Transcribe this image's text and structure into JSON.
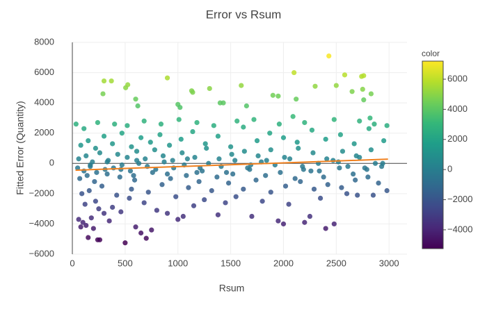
{
  "chart_data": {
    "type": "scatter",
    "title": "Error vs Rsum",
    "x_label": "Rsum",
    "y_label": "Fitted Error (Quantity)",
    "xlim": [
      0,
      3170
    ],
    "ylim": [
      -6000,
      8000
    ],
    "xticks": [
      0,
      500,
      1000,
      1500,
      2000,
      2500,
      3000
    ],
    "yticks": [
      {
        "value": -6000,
        "label": "−6000"
      },
      {
        "value": -4000,
        "label": "−4000"
      },
      {
        "value": -2000,
        "label": "−2000"
      },
      0,
      2000,
      4000,
      6000,
      8000
    ],
    "grid": true,
    "colorscale": "Viridis",
    "colorbar": {
      "title": "color",
      "lim": [
        -5250,
        7200
      ],
      "ticks": [
        {
          "value": -4000,
          "label": "−4000"
        },
        {
          "value": -2000,
          "label": "−2000"
        },
        0,
        2000,
        4000,
        6000
      ]
    },
    "series": [
      {
        "x": [
          35,
          290,
          300,
          370,
          505,
          525,
          600,
          620,
          900,
          1000,
          1020,
          1130,
          1140,
          1300,
          1400,
          1430,
          1600,
          1650,
          1900,
          1950,
          2100,
          2120,
          2300,
          2430,
          2500,
          2580,
          2650,
          2740,
          2760,
          2750,
          2760,
          2830,
          2820,
          2980,
          240,
          260,
          500,
          650,
          700,
          750,
          150,
          80,
          100,
          60,
          180,
          130,
          200,
          350,
          600,
          1000,
          1050,
          1380,
          1700,
          1950,
          2000,
          2200,
          2400,
          2480,
          2250,
          900,
          800,
          460,
          300,
          250,
          120,
          220,
          380,
          540,
          680,
          1150,
          1250,
          1450,
          1550,
          1800,
          2050,
          2350,
          2600,
          2700,
          2850,
          2980,
          90,
          160,
          280,
          420,
          560,
          720,
          850,
          980,
          1100,
          1200,
          1320,
          1480,
          1620,
          1740,
          1880,
          2020,
          2160,
          2290,
          2420,
          2550,
          2680,
          2800,
          2900,
          70,
          140,
          210,
          330,
          450,
          590,
          760,
          930,
          1080,
          1230,
          1370,
          1520,
          1680,
          1830,
          1970,
          2110,
          2260,
          2380,
          2530,
          2660,
          2790,
          2930,
          50,
          110,
          170,
          230,
          310,
          390,
          470,
          550,
          630,
          710,
          790,
          870,
          960,
          1060,
          1180,
          1290,
          1410,
          1540,
          1660,
          1790,
          1920,
          2060,
          2190,
          2330,
          2470,
          2610,
          2720,
          2870,
          60,
          130,
          190,
          260,
          340,
          430,
          520,
          610,
          690,
          780,
          860,
          950,
          1040,
          1160,
          1270,
          1390,
          1510,
          1630,
          1760,
          1880,
          2010,
          2140,
          2280,
          2410,
          2560,
          2690,
          2830,
          80,
          150,
          220,
          300,
          380,
          470,
          560,
          650,
          740,
          830,
          920,
          1030,
          1140,
          1260,
          1380,
          1500,
          1620,
          1750,
          1870,
          2000,
          2130,
          2270,
          2400,
          2540,
          2670,
          2810,
          2950,
          110,
          240,
          400,
          520,
          680,
          840,
          1010,
          1180,
          1340,
          1560,
          1720,
          1960,
          2090,
          2200,
          2480,
          2720,
          2860,
          170,
          330,
          460,
          610,
          900,
          1090,
          1210,
          1460,
          1690,
          1840,
          2180,
          2340,
          2520,
          2770,
          2940,
          580
        ],
        "values": [
          2600,
          4600,
          5450,
          5450,
          5000,
          5200,
          4250,
          3800,
          5650,
          3900,
          3700,
          4800,
          4700,
          4950,
          4000,
          4000,
          5150,
          3800,
          4500,
          4450,
          6000,
          4250,
          5100,
          7100,
          5150,
          5850,
          4750,
          5750,
          5800,
          4900,
          4200,
          4600,
          3000,
          2500,
          -5050,
          -5050,
          -5250,
          -4600,
          -4950,
          -4400,
          -4900,
          -4200,
          -3900,
          -3700,
          -3600,
          -4100,
          -4300,
          -3800,
          -4200,
          -3700,
          -3500,
          -3400,
          -3500,
          -3800,
          -4000,
          -3900,
          -4300,
          -4000,
          -3500,
          -3300,
          -3100,
          -3200,
          -3300,
          -3000,
          -2700,
          -2500,
          -2900,
          -2300,
          -2600,
          -2800,
          -2400,
          -2600,
          -2200,
          -2500,
          -2700,
          -2300,
          -2000,
          -2100,
          -2100,
          -1800,
          -2000,
          -1800,
          -1500,
          -2100,
          -1700,
          -1900,
          -1400,
          -2200,
          -1600,
          -1200,
          -1800,
          -1300,
          -1700,
          -1100,
          -1900,
          -1500,
          -1200,
          -1700,
          -1400,
          -1600,
          -1100,
          -900,
          -1300,
          -1000,
          -800,
          -1200,
          -700,
          -900,
          -1100,
          -600,
          -1000,
          -800,
          -500,
          -900,
          -700,
          -400,
          -800,
          -600,
          -1000,
          -500,
          -900,
          -300,
          -700,
          -400,
          -200,
          -300,
          -500,
          -200,
          -600,
          -400,
          -300,
          -100,
          -500,
          0,
          -200,
          -400,
          100,
          -300,
          -100,
          -600,
          0,
          -200,
          200,
          -300,
          100,
          -100,
          300,
          -400,
          0,
          200,
          -200,
          400,
          0,
          300,
          500,
          100,
          700,
          200,
          600,
          400,
          800,
          300,
          900,
          500,
          200,
          700,
          400,
          1000,
          300,
          600,
          800,
          500,
          900,
          400,
          1000,
          700,
          300,
          800,
          500,
          900,
          1200,
          1500,
          1000,
          1800,
          1300,
          2000,
          1100,
          1700,
          1400,
          1900,
          1200,
          1600,
          2100,
          1300,
          1800,
          1100,
          2400,
          1500,
          2000,
          1700,
          1400,
          2200,
          1600,
          1900,
          1300,
          2300,
          1500,
          2300,
          2700,
          2600,
          2500,
          2800,
          2600,
          2900,
          2700,
          2500,
          2800,
          2900,
          2600,
          3100,
          2700,
          2900,
          2800,
          2600,
          -100,
          100,
          -400,
          200,
          -700,
          300,
          -300,
          -600,
          -100,
          200,
          -200,
          -500,
          100,
          -300,
          0,
          -800
        ]
      }
    ],
    "trendline": {
      "color": "#f0801e",
      "x": [
        30,
        2990
      ],
      "y": [
        -450,
        280
      ]
    }
  }
}
